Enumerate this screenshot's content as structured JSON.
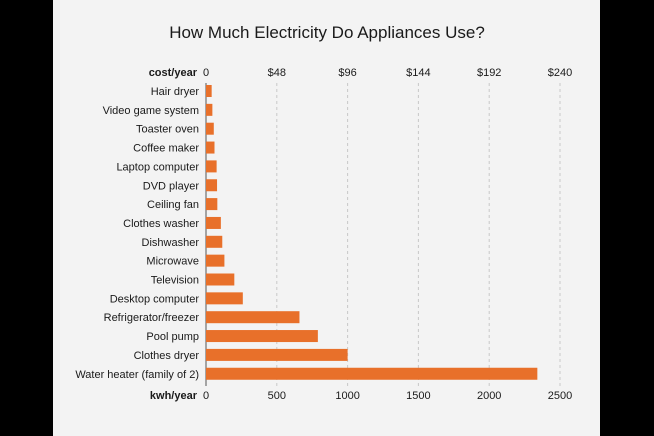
{
  "colors": {
    "bar": "#e8702a",
    "background": "#f3f3f3",
    "grid": "#c8c8c8"
  },
  "chart_data": {
    "type": "bar",
    "orientation": "horizontal",
    "title": "How Much Electricity Do Appliances Use?",
    "categories": [
      "Hair dryer",
      "Video game system",
      "Toaster oven",
      "Coffee maker",
      "Laptop computer",
      "DVD player",
      "Ceiling fan",
      "Clothes washer",
      "Dishwasher",
      "Microwave",
      "Television",
      "Desktop computer",
      "Refrigerator/freezer",
      "Pool pump",
      "Clothes dryer",
      "Water heater (family of 2)"
    ],
    "values": [
      40,
      45,
      55,
      60,
      75,
      78,
      80,
      105,
      115,
      130,
      200,
      260,
      660,
      790,
      1000,
      2340
    ],
    "xlabel": "kwh/year",
    "xlim": [
      0,
      2500
    ],
    "xticks": [
      "0",
      "500",
      "1000",
      "1500",
      "2000",
      "2500"
    ],
    "top_axis_label": "cost/year",
    "top_ticks": [
      "0",
      "$48",
      "$96",
      "$144",
      "$192",
      "$240"
    ],
    "grid": true
  }
}
